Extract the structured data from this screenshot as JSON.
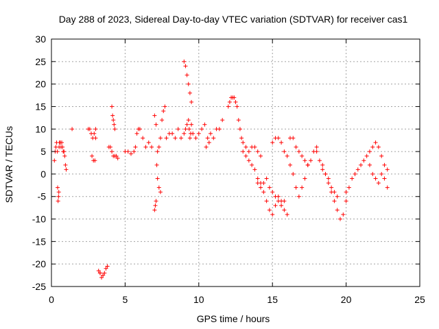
{
  "chart_data": {
    "type": "scatter",
    "title": "Day 288 of 2023, Sidereal Day-to-day VTEC variation (SDTVAR) for receiver cas1",
    "xlabel": "GPS time / hours",
    "ylabel": "SDTVAR / TECUs",
    "xlim": [
      0,
      25
    ],
    "ylim": [
      -25,
      30
    ],
    "xticks": [
      0,
      5,
      10,
      15,
      20,
      25
    ],
    "yticks": [
      -25,
      -20,
      -15,
      -10,
      -5,
      0,
      5,
      10,
      15,
      20,
      25,
      30
    ],
    "xtick_labels": [
      "0",
      "5",
      "10",
      "15",
      "20",
      "25"
    ],
    "ytick_labels": [
      "-25",
      "-20",
      "-15",
      "-10",
      "-5",
      "0",
      "5",
      "10",
      "15",
      "20",
      "25",
      "30"
    ],
    "grid": true,
    "marker": "plus",
    "color": "#ff0000",
    "series": [
      {
        "name": "SDTVAR",
        "x": [
          0.2,
          0.25,
          0.3,
          0.35,
          0.4,
          0.42,
          0.45,
          0.48,
          0.5,
          0.52,
          0.55,
          0.6,
          0.65,
          0.7,
          0.75,
          0.8,
          0.85,
          0.9,
          0.95,
          1.0,
          1.4,
          2.5,
          2.6,
          2.7,
          2.8,
          2.9,
          3.0,
          2.75,
          2.85,
          2.95,
          3.0,
          3.3,
          3.2,
          3.3,
          3.4,
          3.5,
          3.6,
          3.7,
          3.8,
          3.9,
          4.0,
          4.1,
          4.2,
          4.3,
          4.4,
          4.5,
          4.1,
          4.15,
          4.2,
          4.25,
          4.3,
          5.0,
          5.2,
          5.4,
          5.6,
          5.7,
          5.8,
          5.9,
          6.0,
          6.2,
          6.4,
          6.6,
          6.8,
          7.0,
          7.05,
          7.1,
          7.15,
          7.2,
          7.3,
          7.4,
          7.5,
          7.6,
          7.7,
          7.0,
          7.1,
          7.2,
          7.3,
          7.4,
          7.8,
          8.0,
          8.2,
          8.4,
          8.6,
          8.8,
          9.0,
          9.1,
          9.2,
          9.3,
          9.4,
          9.5,
          9.0,
          9.1,
          9.2,
          9.3,
          9.35,
          9.4,
          9.45,
          9.5,
          9.6,
          9.8,
          10.0,
          10.2,
          10.4,
          10.6,
          10.8,
          11.0,
          11.2,
          11.4,
          11.6,
          10.5,
          10.7,
          12.0,
          12.1,
          12.2,
          12.3,
          12.4,
          12.5,
          12.6,
          12.7,
          12.8,
          12.9,
          13.0,
          13.2,
          13.4,
          13.6,
          13.8,
          14.0,
          14.2,
          13.0,
          13.2,
          13.4,
          13.6,
          13.8,
          14.0,
          14.2,
          14.4,
          14.6,
          14.8,
          15.0,
          15.2,
          15.4,
          15.6,
          15.8,
          16.0,
          14.0,
          14.2,
          14.4,
          14.6,
          14.8,
          15.0,
          15.2,
          15.4,
          15.6,
          15.8,
          15.0,
          15.2,
          15.4,
          15.6,
          15.8,
          16.0,
          16.2,
          16.4,
          16.6,
          16.8,
          17.0,
          17.2,
          17.4,
          17.6,
          17.8,
          18.0,
          16.2,
          16.4,
          16.6,
          16.8,
          17.0,
          17.2,
          17.4,
          18.0,
          18.2,
          18.4,
          18.6,
          18.8,
          19.0,
          19.2,
          19.4,
          19.6,
          19.8,
          20.0,
          18.4,
          18.6,
          18.8,
          19.0,
          19.2,
          19.4,
          20.0,
          20.2,
          20.4,
          20.6,
          20.8,
          21.0,
          21.2,
          21.4,
          21.6,
          21.8,
          22.0,
          22.2,
          22.4,
          22.6,
          22.8,
          21.6,
          21.8,
          22.0,
          22.2,
          22.4,
          22.6,
          22.8
        ],
        "y": [
          3,
          5,
          6,
          7,
          5,
          -3,
          -6,
          -5,
          -4,
          6,
          7,
          7,
          6,
          7,
          6,
          5,
          5,
          4,
          2,
          1,
          10,
          10,
          10,
          9,
          8,
          9,
          10,
          4,
          3,
          3,
          8,
          -22,
          -21.5,
          -22,
          -23,
          -22.5,
          -22,
          -21,
          -20.5,
          6,
          6,
          5,
          4,
          4,
          4,
          3.5,
          15,
          13,
          12,
          11,
          10,
          5,
          5,
          4.5,
          5,
          6,
          9,
          10,
          10,
          8,
          6,
          7,
          6,
          -8,
          -7,
          -6,
          2,
          -1,
          -3,
          -4,
          12,
          14,
          15,
          13,
          11,
          5,
          6,
          8,
          8,
          9,
          9,
          8,
          10,
          8,
          25,
          24,
          22,
          20,
          18,
          16,
          9,
          10,
          11,
          12,
          10,
          8,
          9,
          11,
          9,
          8,
          9,
          10,
          11,
          8,
          9,
          8,
          10,
          10,
          12,
          6,
          7,
          15,
          16,
          17,
          17,
          17,
          16,
          15,
          12,
          10,
          8,
          7,
          6,
          5,
          6,
          6,
          5,
          4,
          5,
          4,
          3,
          2,
          1,
          -1,
          -2,
          -2,
          -1,
          -3,
          -4,
          -5,
          -6,
          -7,
          -8,
          -9,
          -2,
          -3,
          -4,
          -6,
          -8,
          -9,
          -7,
          -5,
          -6,
          -6,
          7,
          8,
          8,
          7,
          5,
          4,
          2,
          0,
          -3,
          -5,
          -3,
          -1,
          2,
          3,
          5,
          6,
          8,
          8,
          6,
          5,
          4,
          3,
          2,
          5,
          3,
          2,
          0,
          -2,
          -4,
          -6,
          -8,
          -10,
          -9,
          -6,
          1,
          0,
          -1,
          -3,
          -4,
          -5,
          -4,
          -3,
          -1,
          0,
          1,
          2,
          3,
          4,
          2,
          0,
          -1,
          -2,
          0,
          -1,
          -3,
          5,
          6,
          7,
          6,
          4,
          2,
          1
        ]
      }
    ]
  }
}
